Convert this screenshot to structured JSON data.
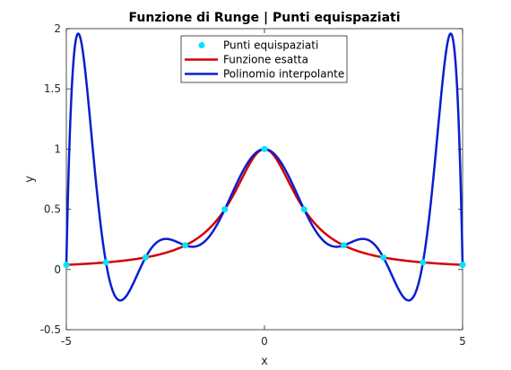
{
  "chart_data": {
    "type": "line",
    "title": "Funzione di Runge | Punti equispaziati",
    "xlabel": "x",
    "ylabel": "y",
    "xlim": [
      -5,
      5
    ],
    "ylim": [
      -0.5,
      2
    ],
    "xticks": [
      -5,
      0,
      5
    ],
    "xtick_labels": [
      "-5",
      "0",
      "5"
    ],
    "yticks": [
      -0.5,
      0,
      0.5,
      1,
      1.5,
      2
    ],
    "ytick_labels": [
      "-0.5",
      "0",
      "0.5",
      "1",
      "1.5",
      "2"
    ],
    "grid": false,
    "legend_position": "top-center",
    "series": [
      {
        "name": "Punti equispaziati",
        "kind": "scatter",
        "color": "#00e5ff",
        "x": [
          -5,
          -4,
          -3,
          -2,
          -1,
          0,
          1,
          2,
          3,
          4,
          5
        ],
        "y": [
          0.0385,
          0.0588,
          0.1,
          0.2,
          0.5,
          1.0,
          0.5,
          0.2,
          0.1,
          0.0588,
          0.0385
        ]
      },
      {
        "name": "Funzione esatta",
        "kind": "line",
        "color": "#d40000",
        "function": "1/(1+x^2)"
      },
      {
        "name": "Polinomio interpolante",
        "kind": "line",
        "color": "#0a1ecf",
        "nodes": [
          -5,
          -4,
          -3,
          -2,
          -1,
          0,
          1,
          2,
          3,
          4,
          5
        ]
      }
    ]
  }
}
